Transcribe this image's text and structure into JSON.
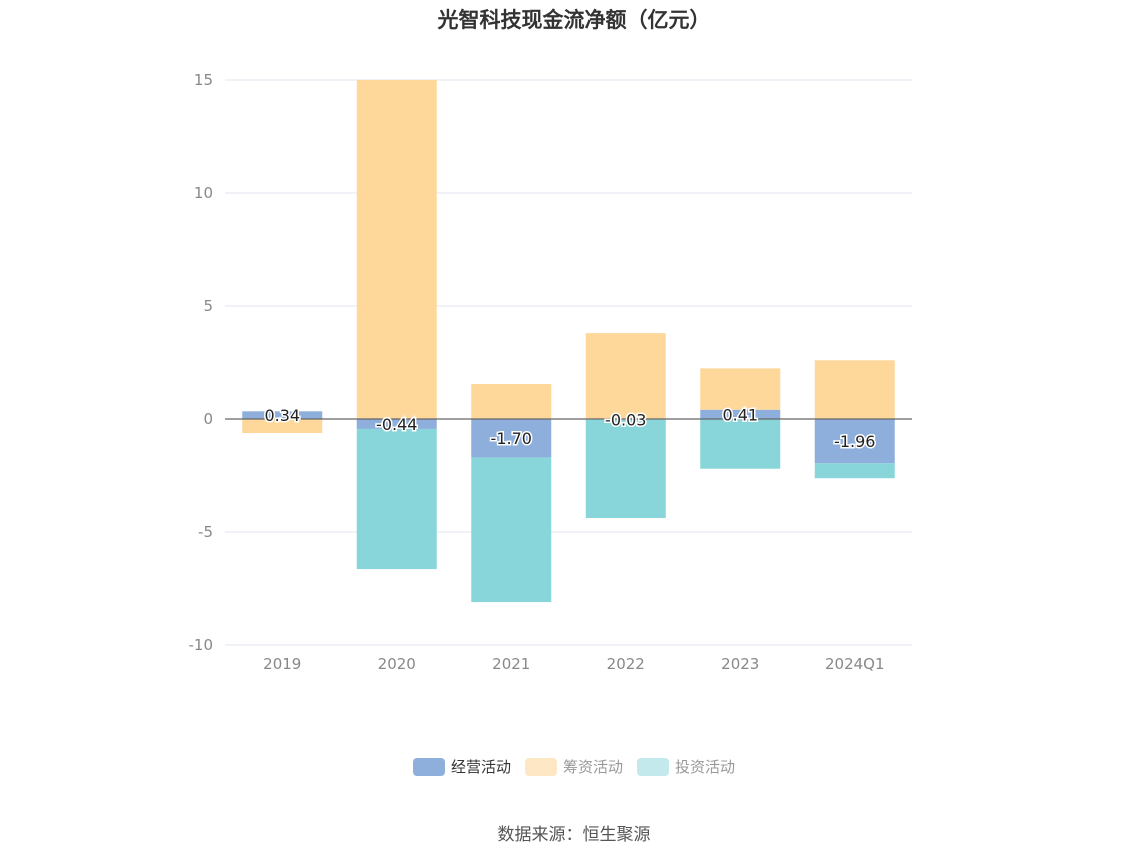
{
  "chart_data": {
    "type": "bar",
    "stacked": true,
    "title": "光智科技现金流净额（亿元）",
    "categories": [
      "2019",
      "2020",
      "2021",
      "2022",
      "2023",
      "2024Q1"
    ],
    "series": [
      {
        "name": "经营活动",
        "color": "#8eaedb",
        "values": [
          0.34,
          -0.44,
          -1.7,
          -0.03,
          0.41,
          -1.96
        ],
        "labels": [
          "0.34",
          "-0.44",
          "-1.70",
          "-0.03",
          "0.41",
          "-1.96"
        ]
      },
      {
        "name": "筹资活动",
        "color": "#fed89b",
        "values": [
          -0.62,
          15.0,
          1.55,
          3.8,
          1.83,
          2.6
        ]
      },
      {
        "name": "投资活动",
        "color": "#89d6da",
        "values": [
          0,
          -6.2,
          -6.4,
          -4.35,
          -2.2,
          -0.66
        ]
      }
    ],
    "ylim": [
      -10,
      15
    ],
    "yticks": [
      -10,
      -5,
      0,
      5,
      10,
      15
    ],
    "grid": true,
    "legend_position": "bottom",
    "legend_swatch_colors": [
      "#8eaedb",
      "#fde7c4",
      "#c3e9ec"
    ]
  },
  "source_note": "数据来源：恒生聚源"
}
